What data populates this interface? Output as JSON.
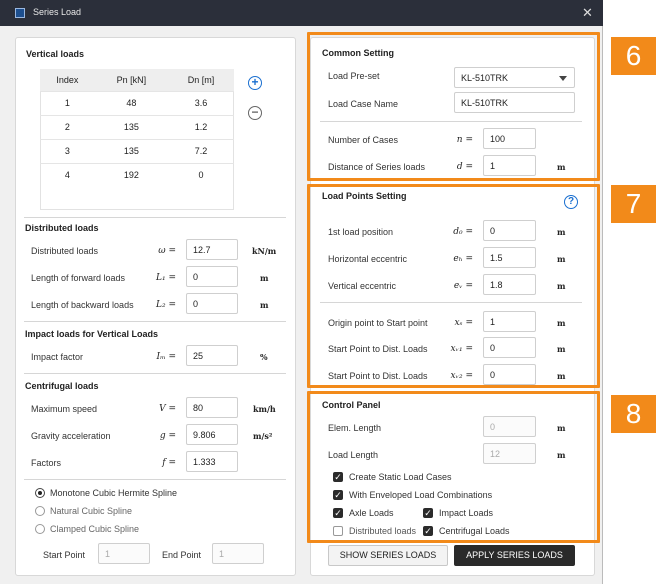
{
  "window": {
    "title": "Series Load",
    "close_glyph": "✕"
  },
  "vertical_loads": {
    "title": "Vertical loads",
    "columns": [
      "Index",
      "Pn [kN]",
      "Dn [m]"
    ],
    "rows": [
      [
        "1",
        "48",
        "3.6"
      ],
      [
        "2",
        "135",
        "1.2"
      ],
      [
        "3",
        "135",
        "7.2"
      ],
      [
        "4",
        "192",
        "0"
      ]
    ],
    "add_glyph": "+",
    "remove_glyph": "−"
  },
  "distributed_loads": {
    "title": "Distributed loads",
    "fields": [
      {
        "label": "Distributed loads",
        "symbol": "ω =",
        "value": "12.7",
        "unit": "kN/m"
      },
      {
        "label": "Length of forward loads",
        "symbol": "L₁ =",
        "value": "0",
        "unit": "m"
      },
      {
        "label": "Length of backward loads",
        "symbol": "L₂ =",
        "value": "0",
        "unit": "m"
      }
    ]
  },
  "impact_loads": {
    "title": "Impact loads for Vertical Loads",
    "fields": [
      {
        "label": "Impact factor",
        "symbol": "Iₘ =",
        "value": "25",
        "unit": "%"
      }
    ]
  },
  "centrifugal_loads": {
    "title": "Centrifugal loads",
    "fields": [
      {
        "label": "Maximum speed",
        "symbol": "V =",
        "value": "80",
        "unit": "km/h"
      },
      {
        "label": "Gravity acceleration",
        "symbol": "g =",
        "value": "9.806",
        "unit": "m/s²"
      },
      {
        "label": "Factors",
        "symbol": "f =",
        "value": "1.333",
        "unit": ""
      }
    ]
  },
  "spline": {
    "options": [
      "Monotone Cubic Hermite Spline",
      "Natural Cubic Spline",
      "Clamped Cubic Spline"
    ],
    "selected_index": 0,
    "start_label": "Start Point",
    "start_value": "1",
    "end_label": "End Point",
    "end_value": "1"
  },
  "common_setting": {
    "title": "Common Setting",
    "preset_label": "Load Pre-set",
    "preset_value": "KL-510TRK",
    "case_name_label": "Load Case Name",
    "case_name_value": "KL-510TRK",
    "fields": [
      {
        "label": "Number of Cases",
        "symbol": "n =",
        "value": "100",
        "unit": ""
      },
      {
        "label": "Distance of Series loads",
        "symbol": "d =",
        "value": "1",
        "unit": "m"
      }
    ]
  },
  "load_points": {
    "title": "Load Points Setting",
    "help_glyph": "?",
    "fields": [
      {
        "label": "1st load position",
        "symbol": "d₀ =",
        "value": "0",
        "unit": "m"
      },
      {
        "label": "Horizontal eccentric",
        "symbol": "eₕ =",
        "value": "1.5",
        "unit": "m"
      },
      {
        "label": "Vertical eccentric",
        "symbol": "eᵥ =",
        "value": "1.8",
        "unit": "m"
      },
      {
        "label": "Origin point to Start point",
        "symbol": "xₛ =",
        "value": "1",
        "unit": "m"
      },
      {
        "label": "Start Point to Dist. Loads",
        "symbol": "xᵥ₁ =",
        "value": "0",
        "unit": "m"
      },
      {
        "label": "Start Point to Dist. Loads",
        "symbol": "xᵥ₂ =",
        "value": "0",
        "unit": "m"
      }
    ]
  },
  "control_panel": {
    "title": "Control Panel",
    "elem_length_label": "Elem. Length",
    "elem_length_value": "0",
    "elem_length_unit": "m",
    "load_length_label": "Load Length",
    "load_length_value": "12",
    "load_length_unit": "m",
    "checks": [
      {
        "label": "Create Static Load Cases",
        "checked": true
      },
      {
        "label": "With Enveloped Load Combinations",
        "checked": true
      },
      {
        "label": "Axle Loads",
        "checked": true
      },
      {
        "label": "Impact Loads",
        "checked": true
      },
      {
        "label": "Distributed loads",
        "checked": false
      },
      {
        "label": "Centrifugal Loads",
        "checked": true
      }
    ],
    "check_glyph": "✓"
  },
  "buttons": {
    "show": "SHOW SERIES LOADS",
    "apply": "APPLY SERIES LOADS"
  },
  "badges": [
    "6",
    "7",
    "8"
  ],
  "colors": {
    "accent_orange": "#f28a1a",
    "titlebar": "#2b2f3a",
    "help_blue": "#1a6fd0"
  }
}
